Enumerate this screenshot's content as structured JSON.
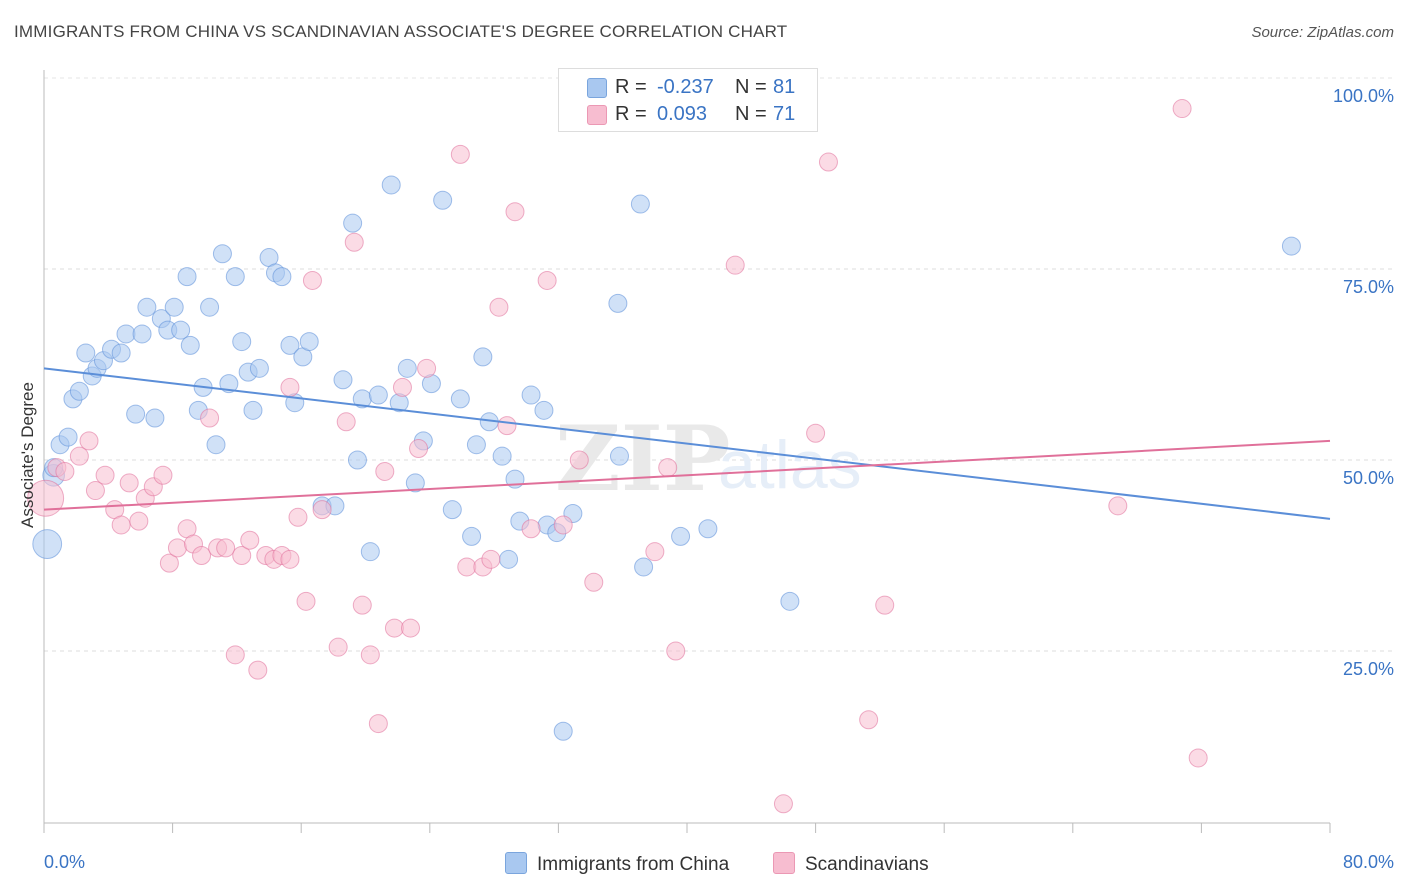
{
  "title": "IMMIGRANTS FROM CHINA VS SCANDINAVIAN ASSOCIATE'S DEGREE CORRELATION CHART",
  "source": "Source: ZipAtlas.com",
  "watermark": "ZIPatlas",
  "legend": {
    "r_label": "R =",
    "n_label": "N =",
    "items": [
      {
        "name": "Immigrants from China",
        "r": "-0.237",
        "n": "81",
        "color": "#a9c8f0"
      },
      {
        "name": "Scandinavians",
        "r": "0.093",
        "n": "71",
        "color": "#f7bdd0"
      }
    ]
  },
  "chart_data": {
    "type": "scatter",
    "title": "IMMIGRANTS FROM CHINA VS SCANDINAVIAN ASSOCIATE'S DEGREE CORRELATION CHART",
    "xlabel": "",
    "ylabel": "Associate's Degree",
    "xlim": [
      0,
      80
    ],
    "ylim": [
      0,
      105
    ],
    "x_tick_labels": [
      "0.0%",
      "80.0%"
    ],
    "y_ticks": [
      25,
      50,
      75,
      100
    ],
    "y_tick_labels": [
      "25.0%",
      "50.0%",
      "75.0%",
      "100.0%"
    ],
    "grid": "horizontal dashed",
    "legend_position": "top-center",
    "series": [
      {
        "name": "Immigrants from China",
        "color": "#5b8ed8",
        "fill": "#a9c8f0",
        "trend": {
          "x": [
            0,
            80
          ],
          "y": [
            62.0,
            42.3
          ]
        },
        "points": [
          [
            0.2,
            39.0,
            1.6
          ],
          [
            0.6,
            48.0,
            1.2
          ],
          [
            1.0,
            52.0,
            1.0
          ],
          [
            1.5,
            53.0,
            1.0
          ],
          [
            1.8,
            58.0,
            1.0
          ],
          [
            2.2,
            59.0,
            1.0
          ],
          [
            2.6,
            64.0,
            1.0
          ],
          [
            3.0,
            61.0,
            1.0
          ],
          [
            3.3,
            62.0,
            1.0
          ],
          [
            3.7,
            63.0,
            1.0
          ],
          [
            4.2,
            64.5,
            1.0
          ],
          [
            4.8,
            64.0,
            1.0
          ],
          [
            5.1,
            66.5,
            1.0
          ],
          [
            5.7,
            56.0,
            1.0
          ],
          [
            6.1,
            66.5,
            1.0
          ],
          [
            6.4,
            70.0,
            1.0
          ],
          [
            6.9,
            55.5,
            1.0
          ],
          [
            7.3,
            68.5,
            1.0
          ],
          [
            7.7,
            67.0,
            1.0
          ],
          [
            8.1,
            70.0,
            1.0
          ],
          [
            8.5,
            67.0,
            1.0
          ],
          [
            8.9,
            74.0,
            1.0
          ],
          [
            9.1,
            65.0,
            1.0
          ],
          [
            9.6,
            56.5,
            1.0
          ],
          [
            9.9,
            59.5,
            1.0
          ],
          [
            10.3,
            70.0,
            1.0
          ],
          [
            10.7,
            52.0,
            1.0
          ],
          [
            11.1,
            77.0,
            1.0
          ],
          [
            11.5,
            60.0,
            1.0
          ],
          [
            11.9,
            74.0,
            1.0
          ],
          [
            12.3,
            65.5,
            1.0
          ],
          [
            12.7,
            61.5,
            1.0
          ],
          [
            13.0,
            56.5,
            1.0
          ],
          [
            13.4,
            62.0,
            1.0
          ],
          [
            14.0,
            76.5,
            1.0
          ],
          [
            14.4,
            74.5,
            1.0
          ],
          [
            14.8,
            74.0,
            1.0
          ],
          [
            15.3,
            65.0,
            1.0
          ],
          [
            15.6,
            57.5,
            1.0
          ],
          [
            16.1,
            63.5,
            1.0
          ],
          [
            16.5,
            65.5,
            1.0
          ],
          [
            17.3,
            44.0,
            1.0
          ],
          [
            18.1,
            44.0,
            1.0
          ],
          [
            18.6,
            60.5,
            1.0
          ],
          [
            19.2,
            81.0,
            1.0
          ],
          [
            19.5,
            50.0,
            1.0
          ],
          [
            19.8,
            58.0,
            1.0
          ],
          [
            20.3,
            38.0,
            1.0
          ],
          [
            20.8,
            58.5,
            1.0
          ],
          [
            21.6,
            86.0,
            1.0
          ],
          [
            22.1,
            57.5,
            1.0
          ],
          [
            22.6,
            62.0,
            1.0
          ],
          [
            23.1,
            47.0,
            1.0
          ],
          [
            23.6,
            52.5,
            1.0
          ],
          [
            24.1,
            60.0,
            1.0
          ],
          [
            24.8,
            84.0,
            1.0
          ],
          [
            25.4,
            43.5,
            1.0
          ],
          [
            25.9,
            58.0,
            1.0
          ],
          [
            26.6,
            40.0,
            1.0
          ],
          [
            26.9,
            52.0,
            1.0
          ],
          [
            27.3,
            63.5,
            1.0
          ],
          [
            27.7,
            55.0,
            1.0
          ],
          [
            28.5,
            50.5,
            1.0
          ],
          [
            28.9,
            37.0,
            1.0
          ],
          [
            29.3,
            47.5,
            1.0
          ],
          [
            29.6,
            42.0,
            1.0
          ],
          [
            30.3,
            58.5,
            1.0
          ],
          [
            31.1,
            56.5,
            1.0
          ],
          [
            31.3,
            41.5,
            1.0
          ],
          [
            31.9,
            40.5,
            1.0
          ],
          [
            32.3,
            14.5,
            1.0
          ],
          [
            32.9,
            43.0,
            1.0
          ],
          [
            35.7,
            70.5,
            1.0
          ],
          [
            35.8,
            50.5,
            1.0
          ],
          [
            37.1,
            83.5,
            1.0
          ],
          [
            37.3,
            36.0,
            1.0
          ],
          [
            39.6,
            40.0,
            1.0
          ],
          [
            41.3,
            41.0,
            1.0
          ],
          [
            46.4,
            31.5,
            1.0
          ],
          [
            77.6,
            78.0,
            1.0
          ],
          [
            0.6,
            49.0,
            1.0
          ]
        ]
      },
      {
        "name": "Scandinavians",
        "color": "#e0709a",
        "fill": "#f7bdd0",
        "trend": {
          "x": [
            0,
            80
          ],
          "y": [
            43.5,
            52.5
          ]
        },
        "points": [
          [
            0.1,
            45.0,
            2.0
          ],
          [
            0.8,
            49.0,
            1.0
          ],
          [
            1.3,
            48.5,
            1.0
          ],
          [
            2.2,
            50.5,
            1.0
          ],
          [
            2.8,
            52.5,
            1.0
          ],
          [
            3.2,
            46.0,
            1.0
          ],
          [
            3.8,
            48.0,
            1.0
          ],
          [
            4.4,
            43.5,
            1.0
          ],
          [
            4.8,
            41.5,
            1.0
          ],
          [
            5.3,
            47.0,
            1.0
          ],
          [
            5.9,
            42.0,
            1.0
          ],
          [
            6.3,
            45.0,
            1.0
          ],
          [
            6.8,
            46.5,
            1.0
          ],
          [
            7.4,
            48.0,
            1.0
          ],
          [
            7.8,
            36.5,
            1.0
          ],
          [
            8.3,
            38.5,
            1.0
          ],
          [
            8.9,
            41.0,
            1.0
          ],
          [
            9.3,
            39.0,
            1.0
          ],
          [
            9.8,
            37.5,
            1.0
          ],
          [
            10.3,
            55.5,
            1.0
          ],
          [
            10.8,
            38.5,
            1.0
          ],
          [
            11.3,
            38.5,
            1.0
          ],
          [
            11.9,
            24.5,
            1.0
          ],
          [
            12.3,
            37.5,
            1.0
          ],
          [
            12.8,
            39.5,
            1.0
          ],
          [
            13.3,
            22.5,
            1.0
          ],
          [
            13.8,
            37.5,
            1.0
          ],
          [
            14.3,
            37.0,
            1.0
          ],
          [
            14.8,
            37.5,
            1.0
          ],
          [
            15.3,
            59.5,
            1.0
          ],
          [
            15.8,
            42.5,
            1.0
          ],
          [
            16.3,
            31.5,
            1.0
          ],
          [
            16.7,
            73.5,
            1.0
          ],
          [
            17.3,
            43.5,
            1.0
          ],
          [
            18.3,
            25.5,
            1.0
          ],
          [
            18.8,
            55.0,
            1.0
          ],
          [
            19.3,
            78.5,
            1.0
          ],
          [
            19.8,
            31.0,
            1.0
          ],
          [
            20.3,
            24.5,
            1.0
          ],
          [
            20.8,
            15.5,
            1.0
          ],
          [
            21.2,
            48.5,
            1.0
          ],
          [
            21.8,
            28.0,
            1.0
          ],
          [
            22.3,
            59.5,
            1.0
          ],
          [
            22.8,
            28.0,
            1.0
          ],
          [
            23.3,
            51.5,
            1.0
          ],
          [
            23.8,
            62.0,
            1.0
          ],
          [
            25.9,
            90.0,
            1.0
          ],
          [
            26.3,
            36.0,
            1.0
          ],
          [
            27.3,
            36.0,
            1.0
          ],
          [
            27.8,
            37.0,
            1.0
          ],
          [
            28.3,
            70.0,
            1.0
          ],
          [
            28.8,
            54.5,
            1.0
          ],
          [
            29.3,
            82.5,
            1.0
          ],
          [
            30.3,
            41.0,
            1.0
          ],
          [
            31.3,
            73.5,
            1.0
          ],
          [
            32.3,
            41.5,
            1.0
          ],
          [
            33.3,
            50.0,
            1.0
          ],
          [
            34.2,
            34.0,
            1.0
          ],
          [
            38.0,
            38.0,
            1.0
          ],
          [
            38.8,
            49.0,
            1.0
          ],
          [
            39.3,
            25.0,
            1.0
          ],
          [
            43.0,
            75.5,
            1.0
          ],
          [
            46.0,
            5.0,
            1.0
          ],
          [
            48.0,
            53.5,
            1.0
          ],
          [
            48.8,
            89.0,
            1.0
          ],
          [
            51.3,
            16.0,
            1.0
          ],
          [
            52.3,
            31.0,
            1.0
          ],
          [
            66.8,
            44.0,
            1.0
          ],
          [
            70.8,
            96.0,
            1.0
          ],
          [
            71.8,
            11.0,
            1.0
          ],
          [
            15.3,
            37.0,
            1.0
          ]
        ]
      }
    ]
  }
}
